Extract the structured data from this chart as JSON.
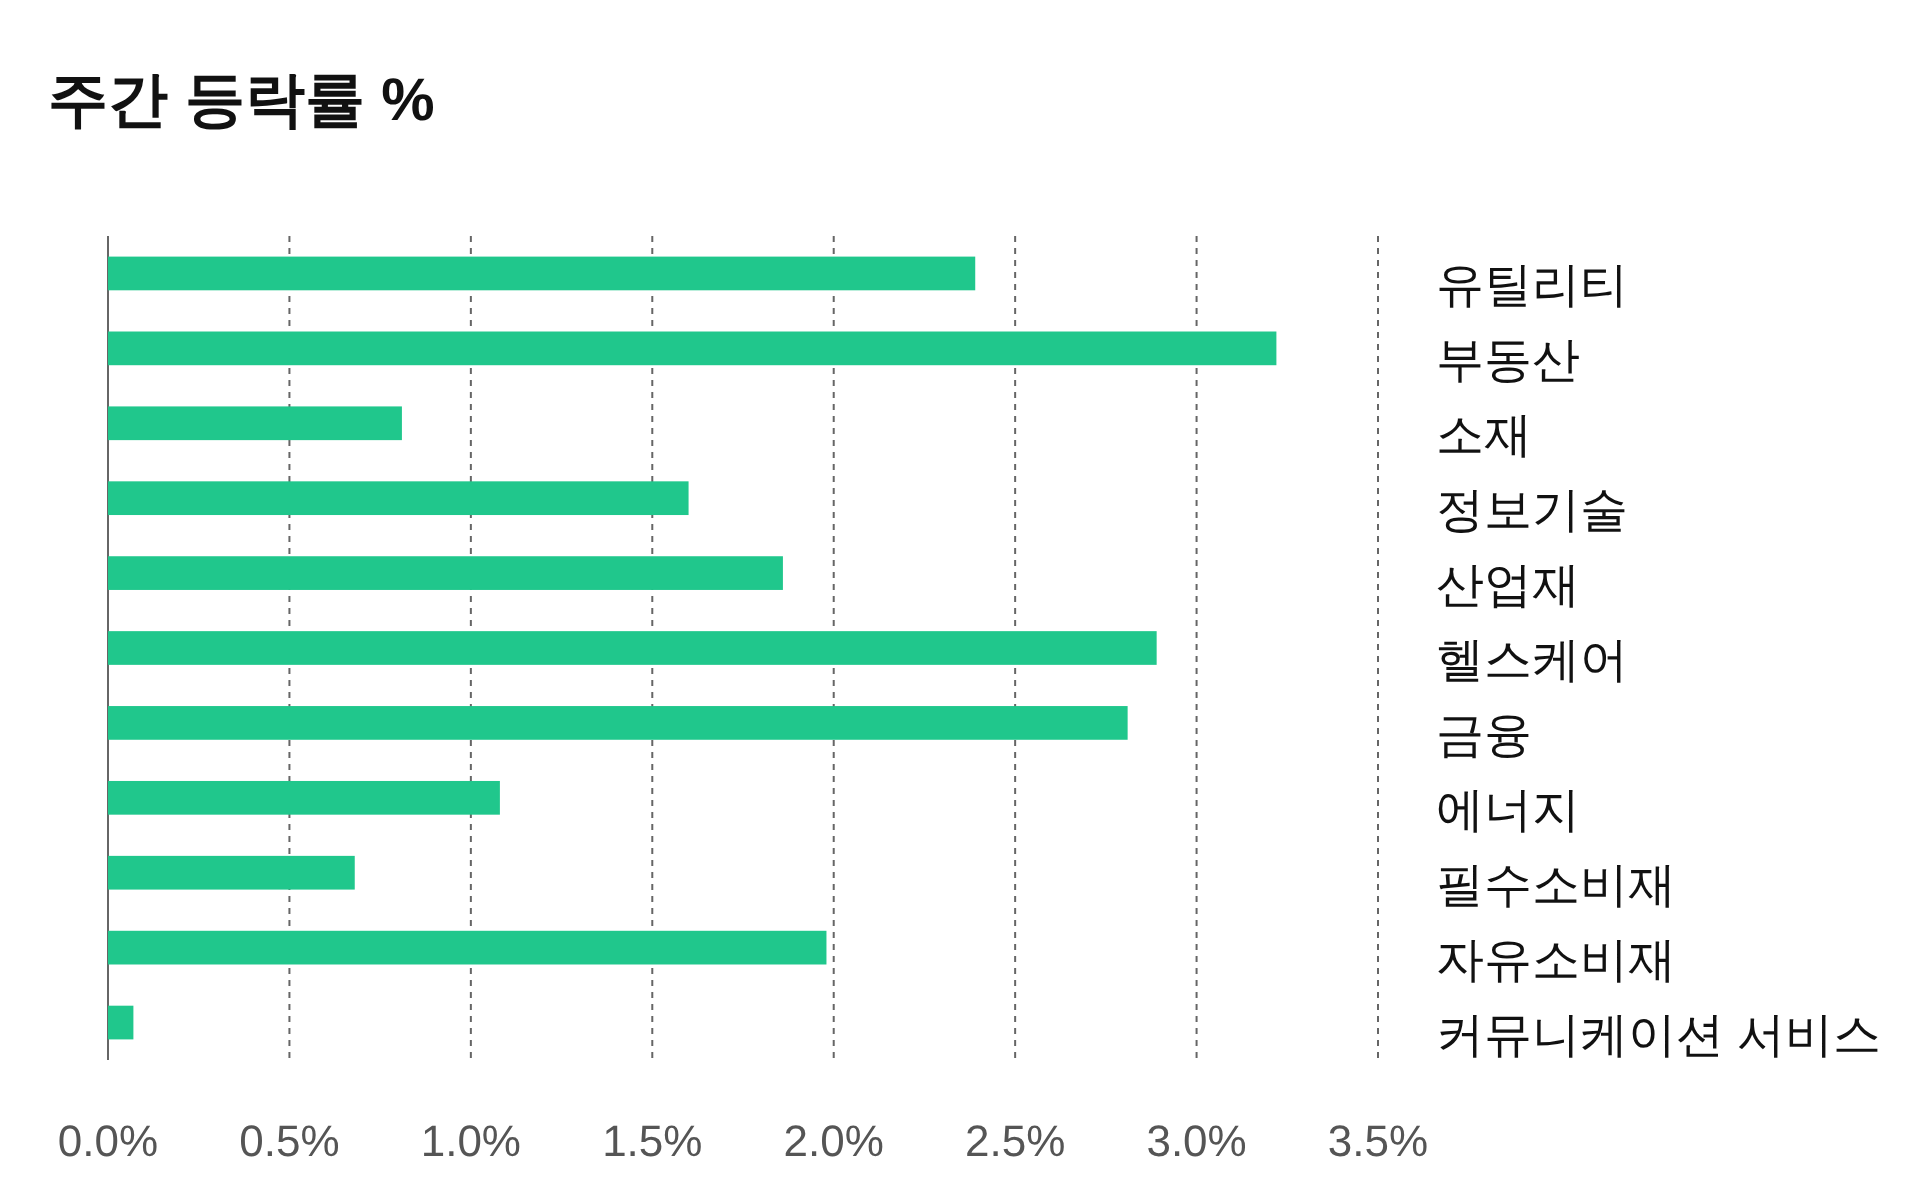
{
  "chart_data": {
    "type": "bar",
    "orientation": "horizontal",
    "title": "주간 등락률 %",
    "categories": [
      "유틸리티",
      "부동산",
      "소재",
      "정보기술",
      "산업재",
      "헬스케어",
      "금융",
      "에너지",
      "필수소비재",
      "자유소비재",
      "커뮤니케이션 서비스"
    ],
    "values": [
      2.39,
      3.22,
      0.81,
      1.6,
      1.86,
      2.89,
      2.81,
      1.08,
      0.68,
      1.98,
      0.07
    ],
    "color": "#20c78c",
    "xlim": [
      0,
      3.5
    ],
    "xticks": [
      {
        "value": 0,
        "label": "0.0%"
      },
      {
        "value": 0.5,
        "label": "0.5%"
      },
      {
        "value": 1,
        "label": "1.0%"
      },
      {
        "value": 1.5,
        "label": "1.5%"
      },
      {
        "value": 2,
        "label": "2.0%"
      },
      {
        "value": 2.5,
        "label": "2.5%"
      },
      {
        "value": 3,
        "label": "3.0%"
      },
      {
        "value": 3.5,
        "label": "3.5%"
      }
    ],
    "grid": "x"
  }
}
